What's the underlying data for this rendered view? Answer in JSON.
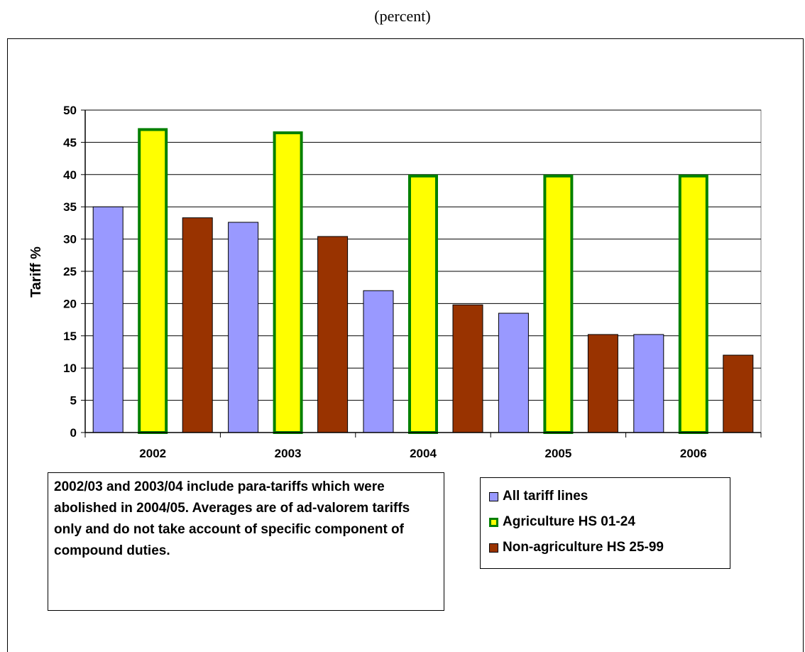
{
  "caption": "(percent)",
  "note": "2002/03 and 2003/04 include para-tariffs which were abolished in 2004/05. Averages are of ad-valorem tariffs only and do not take account of specific component of compound duties.",
  "chart_data": {
    "type": "bar",
    "title": "",
    "xlabel": "",
    "ylabel": "Tariff %",
    "ylim": [
      0,
      50
    ],
    "yticks": [
      0,
      5,
      10,
      15,
      20,
      25,
      30,
      35,
      40,
      45,
      50
    ],
    "grid": true,
    "legend_position": "bottom-right",
    "categories": [
      "2002",
      "2003",
      "2004",
      "2005",
      "2006"
    ],
    "series": [
      {
        "name": "All tariff lines",
        "values": [
          35.0,
          32.6,
          22.0,
          18.5,
          15.2
        ],
        "color": "#9999ff",
        "stroke": "#000000"
      },
      {
        "name": "Agriculture HS 01-24",
        "values": [
          47.2,
          46.7,
          40.0,
          40.0,
          40.0
        ],
        "color": "#ffff00",
        "stroke": "#008000"
      },
      {
        "name": "Non-agriculture HS 25-99",
        "values": [
          33.3,
          30.4,
          19.8,
          15.2,
          12.0
        ],
        "color": "#993300",
        "stroke": "#000000"
      }
    ]
  }
}
